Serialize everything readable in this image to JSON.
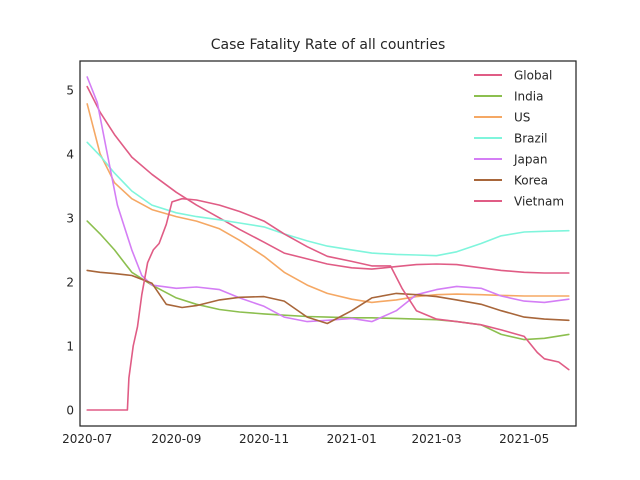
{
  "chart_data": {
    "type": "line",
    "title": "Case Fatality Rate of all countries",
    "xlabel": "",
    "ylabel": "",
    "x_axis": "date",
    "xlim": [
      "2020-06-26",
      "2021-06-06"
    ],
    "ylim": [
      -0.25,
      5.45
    ],
    "x_ticks": [
      "2020-07",
      "2020-09",
      "2020-11",
      "2021-01",
      "2021-03",
      "2021-05"
    ],
    "x_tick_dates": [
      "2020-07-01",
      "2020-09-01",
      "2020-11-01",
      "2021-01-01",
      "2021-03-01",
      "2021-05-01"
    ],
    "y_ticks": [
      0,
      1,
      2,
      3,
      4,
      5
    ],
    "grid": false,
    "legend_position": "upper-right",
    "series": [
      {
        "name": "Global",
        "color": "#e05c85",
        "points": [
          [
            "2020-07-01",
            5.05
          ],
          [
            "2020-07-10",
            4.65
          ],
          [
            "2020-07-20",
            4.3
          ],
          [
            "2020-08-01",
            3.95
          ],
          [
            "2020-08-15",
            3.68
          ],
          [
            "2020-09-01",
            3.4
          ],
          [
            "2020-09-15",
            3.2
          ],
          [
            "2020-10-01",
            3.0
          ],
          [
            "2020-10-15",
            2.82
          ],
          [
            "2020-11-01",
            2.62
          ],
          [
            "2020-11-15",
            2.45
          ],
          [
            "2020-12-01",
            2.36
          ],
          [
            "2020-12-15",
            2.28
          ],
          [
            "2021-01-01",
            2.22
          ],
          [
            "2021-01-15",
            2.2
          ],
          [
            "2021-02-01",
            2.24
          ],
          [
            "2021-02-15",
            2.27
          ],
          [
            "2021-03-01",
            2.28
          ],
          [
            "2021-03-15",
            2.27
          ],
          [
            "2021-04-01",
            2.22
          ],
          [
            "2021-04-15",
            2.18
          ],
          [
            "2021-05-01",
            2.15
          ],
          [
            "2021-05-15",
            2.14
          ],
          [
            "2021-06-01",
            2.14
          ]
        ]
      },
      {
        "name": "India",
        "color": "#8cbf4f",
        "points": [
          [
            "2020-07-01",
            2.95
          ],
          [
            "2020-07-10",
            2.75
          ],
          [
            "2020-07-20",
            2.5
          ],
          [
            "2020-08-01",
            2.15
          ],
          [
            "2020-08-15",
            1.95
          ],
          [
            "2020-09-01",
            1.75
          ],
          [
            "2020-09-15",
            1.65
          ],
          [
            "2020-10-01",
            1.57
          ],
          [
            "2020-10-15",
            1.53
          ],
          [
            "2020-11-01",
            1.5
          ],
          [
            "2020-11-15",
            1.48
          ],
          [
            "2020-12-01",
            1.46
          ],
          [
            "2020-12-15",
            1.45
          ],
          [
            "2021-01-01",
            1.44
          ],
          [
            "2021-01-15",
            1.44
          ],
          [
            "2021-02-01",
            1.43
          ],
          [
            "2021-02-15",
            1.42
          ],
          [
            "2021-03-01",
            1.41
          ],
          [
            "2021-03-15",
            1.38
          ],
          [
            "2021-04-01",
            1.33
          ],
          [
            "2021-04-15",
            1.18
          ],
          [
            "2021-05-01",
            1.1
          ],
          [
            "2021-05-15",
            1.12
          ],
          [
            "2021-06-01",
            1.18
          ]
        ]
      },
      {
        "name": "US",
        "color": "#f5a864",
        "points": [
          [
            "2020-07-01",
            4.78
          ],
          [
            "2020-07-10",
            4.0
          ],
          [
            "2020-07-20",
            3.55
          ],
          [
            "2020-08-01",
            3.3
          ],
          [
            "2020-08-15",
            3.13
          ],
          [
            "2020-09-01",
            3.02
          ],
          [
            "2020-09-15",
            2.95
          ],
          [
            "2020-10-01",
            2.83
          ],
          [
            "2020-10-15",
            2.65
          ],
          [
            "2020-11-01",
            2.4
          ],
          [
            "2020-11-15",
            2.15
          ],
          [
            "2020-12-01",
            1.95
          ],
          [
            "2020-12-15",
            1.82
          ],
          [
            "2021-01-01",
            1.73
          ],
          [
            "2021-01-15",
            1.68
          ],
          [
            "2021-02-01",
            1.72
          ],
          [
            "2021-02-15",
            1.77
          ],
          [
            "2021-03-01",
            1.8
          ],
          [
            "2021-03-15",
            1.81
          ],
          [
            "2021-04-01",
            1.8
          ],
          [
            "2021-04-15",
            1.79
          ],
          [
            "2021-05-01",
            1.78
          ],
          [
            "2021-05-15",
            1.78
          ],
          [
            "2021-06-01",
            1.78
          ]
        ]
      },
      {
        "name": "Brazil",
        "color": "#7ff5dc",
        "points": [
          [
            "2020-07-01",
            4.18
          ],
          [
            "2020-07-10",
            3.97
          ],
          [
            "2020-07-20",
            3.7
          ],
          [
            "2020-08-01",
            3.42
          ],
          [
            "2020-08-15",
            3.2
          ],
          [
            "2020-09-01",
            3.08
          ],
          [
            "2020-09-15",
            3.02
          ],
          [
            "2020-10-01",
            2.97
          ],
          [
            "2020-10-15",
            2.92
          ],
          [
            "2020-11-01",
            2.86
          ],
          [
            "2020-11-15",
            2.75
          ],
          [
            "2020-12-01",
            2.64
          ],
          [
            "2020-12-15",
            2.56
          ],
          [
            "2021-01-01",
            2.5
          ],
          [
            "2021-01-15",
            2.45
          ],
          [
            "2021-02-01",
            2.43
          ],
          [
            "2021-02-15",
            2.42
          ],
          [
            "2021-03-01",
            2.41
          ],
          [
            "2021-03-15",
            2.47
          ],
          [
            "2021-04-01",
            2.6
          ],
          [
            "2021-04-15",
            2.72
          ],
          [
            "2021-05-01",
            2.78
          ],
          [
            "2021-05-15",
            2.79
          ],
          [
            "2021-06-01",
            2.8
          ]
        ]
      },
      {
        "name": "Japan",
        "color": "#d47ef5",
        "points": [
          [
            "2020-07-01",
            5.2
          ],
          [
            "2020-07-08",
            4.8
          ],
          [
            "2020-07-15",
            4.0
          ],
          [
            "2020-07-22",
            3.2
          ],
          [
            "2020-08-01",
            2.5
          ],
          [
            "2020-08-08",
            2.1
          ],
          [
            "2020-08-15",
            1.95
          ],
          [
            "2020-09-01",
            1.9
          ],
          [
            "2020-09-15",
            1.92
          ],
          [
            "2020-10-01",
            1.88
          ],
          [
            "2020-10-15",
            1.75
          ],
          [
            "2020-11-01",
            1.62
          ],
          [
            "2020-11-15",
            1.45
          ],
          [
            "2020-12-01",
            1.38
          ],
          [
            "2020-12-15",
            1.4
          ],
          [
            "2021-01-01",
            1.43
          ],
          [
            "2021-01-15",
            1.38
          ],
          [
            "2021-02-01",
            1.55
          ],
          [
            "2021-02-15",
            1.8
          ],
          [
            "2021-03-01",
            1.88
          ],
          [
            "2021-03-15",
            1.93
          ],
          [
            "2021-04-01",
            1.9
          ],
          [
            "2021-04-15",
            1.78
          ],
          [
            "2021-05-01",
            1.7
          ],
          [
            "2021-05-15",
            1.68
          ],
          [
            "2021-06-01",
            1.73
          ]
        ]
      },
      {
        "name": "Korea",
        "color": "#a8663a",
        "points": [
          [
            "2020-07-01",
            2.18
          ],
          [
            "2020-07-10",
            2.15
          ],
          [
            "2020-07-20",
            2.13
          ],
          [
            "2020-08-01",
            2.1
          ],
          [
            "2020-08-15",
            1.98
          ],
          [
            "2020-08-25",
            1.65
          ],
          [
            "2020-09-05",
            1.6
          ],
          [
            "2020-09-15",
            1.63
          ],
          [
            "2020-10-01",
            1.72
          ],
          [
            "2020-10-15",
            1.76
          ],
          [
            "2020-11-01",
            1.77
          ],
          [
            "2020-11-15",
            1.7
          ],
          [
            "2020-12-01",
            1.45
          ],
          [
            "2020-12-15",
            1.35
          ],
          [
            "2021-01-01",
            1.55
          ],
          [
            "2021-01-15",
            1.75
          ],
          [
            "2021-02-01",
            1.82
          ],
          [
            "2021-02-15",
            1.8
          ],
          [
            "2021-03-01",
            1.77
          ],
          [
            "2021-03-15",
            1.72
          ],
          [
            "2021-04-01",
            1.65
          ],
          [
            "2021-04-15",
            1.55
          ],
          [
            "2021-05-01",
            1.45
          ],
          [
            "2021-05-15",
            1.42
          ],
          [
            "2021-06-01",
            1.4
          ]
        ]
      },
      {
        "name": "Vietnam",
        "color": "#e05c85",
        "points": [
          [
            "2020-07-01",
            0.0
          ],
          [
            "2020-07-29",
            0.0
          ],
          [
            "2020-07-30",
            0.5
          ],
          [
            "2020-08-02",
            1.0
          ],
          [
            "2020-08-05",
            1.3
          ],
          [
            "2020-08-08",
            1.8
          ],
          [
            "2020-08-12",
            2.3
          ],
          [
            "2020-08-16",
            2.5
          ],
          [
            "2020-08-20",
            2.6
          ],
          [
            "2020-08-25",
            2.9
          ],
          [
            "2020-08-29",
            3.25
          ],
          [
            "2020-09-05",
            3.3
          ],
          [
            "2020-09-15",
            3.28
          ],
          [
            "2020-10-01",
            3.2
          ],
          [
            "2020-10-15",
            3.1
          ],
          [
            "2020-11-01",
            2.95
          ],
          [
            "2020-11-15",
            2.75
          ],
          [
            "2020-12-01",
            2.55
          ],
          [
            "2020-12-15",
            2.4
          ],
          [
            "2021-01-01",
            2.32
          ],
          [
            "2021-01-15",
            2.25
          ],
          [
            "2021-01-28",
            2.25
          ],
          [
            "2021-02-05",
            1.9
          ],
          [
            "2021-02-15",
            1.55
          ],
          [
            "2021-03-01",
            1.42
          ],
          [
            "2021-03-15",
            1.38
          ],
          [
            "2021-04-01",
            1.33
          ],
          [
            "2021-04-15",
            1.25
          ],
          [
            "2021-05-01",
            1.15
          ],
          [
            "2021-05-10",
            0.9
          ],
          [
            "2021-05-15",
            0.8
          ],
          [
            "2021-05-25",
            0.75
          ],
          [
            "2021-06-01",
            0.63
          ]
        ]
      }
    ]
  }
}
